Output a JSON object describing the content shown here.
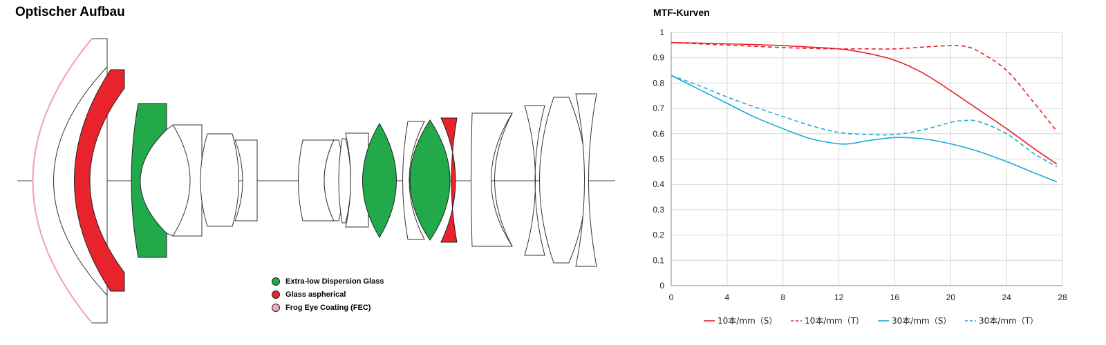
{
  "optics": {
    "title": "Optischer Aufbau",
    "legend": [
      {
        "label": "Extra-low Dispersion Glass",
        "color": "#22aa4a"
      },
      {
        "label": "Glass aspherical",
        "color": "#e8232b"
      },
      {
        "label": "Frog Eye Coating (FEC)",
        "color": "#f4a6b8"
      }
    ]
  },
  "chart_data": {
    "type": "line",
    "title": "MTF-Kurven",
    "xlabel": "",
    "ylabel": "",
    "xlim": [
      0,
      28
    ],
    "ylim": [
      0,
      1
    ],
    "xticks": [
      0,
      4,
      8,
      12,
      16,
      20,
      24,
      28
    ],
    "yticks": [
      0,
      0.1,
      0.2,
      0.3,
      0.4,
      0.5,
      0.6,
      0.7,
      0.8,
      0.9,
      1
    ],
    "ytick_labels": [
      "0",
      "0.1",
      "0.2",
      "0.3",
      "0.4",
      "0.5",
      "0.6",
      "0.7",
      "0.8",
      "0.9",
      "1"
    ],
    "grid": true,
    "legend_position": "bottom",
    "series": [
      {
        "name": "10本/mm（S）",
        "color": "#e8202a",
        "dash": false,
        "x": [
          0,
          2,
          4,
          6,
          8,
          10,
          12,
          14,
          16,
          18,
          20,
          22,
          24,
          26,
          27.6
        ],
        "y": [
          0.96,
          0.958,
          0.955,
          0.952,
          0.948,
          0.942,
          0.935,
          0.918,
          0.89,
          0.84,
          0.77,
          0.695,
          0.62,
          0.54,
          0.48
        ]
      },
      {
        "name": "10本/mm（T）",
        "color": "#e8202a",
        "dash": true,
        "x": [
          0,
          2,
          4,
          6,
          8,
          10,
          12,
          14,
          16,
          18,
          20,
          21,
          22,
          24,
          26,
          27.6
        ],
        "y": [
          0.96,
          0.955,
          0.95,
          0.945,
          0.94,
          0.937,
          0.935,
          0.935,
          0.935,
          0.942,
          0.948,
          0.945,
          0.925,
          0.85,
          0.72,
          0.61
        ]
      },
      {
        "name": "30本/mm（S）",
        "color": "#1aaadc",
        "dash": false,
        "x": [
          0,
          2,
          4,
          6,
          8,
          10,
          12,
          13,
          14,
          16,
          18,
          20,
          22,
          24,
          26,
          27.6
        ],
        "y": [
          0.83,
          0.775,
          0.72,
          0.665,
          0.62,
          0.58,
          0.56,
          0.562,
          0.572,
          0.585,
          0.58,
          0.56,
          0.53,
          0.49,
          0.445,
          0.41
        ]
      },
      {
        "name": "30本/mm（T）",
        "color": "#1aaadc",
        "dash": true,
        "x": [
          0,
          2,
          4,
          6,
          8,
          10,
          12,
          14,
          16,
          18,
          20,
          21,
          22,
          24,
          26,
          27.6
        ],
        "y": [
          0.83,
          0.79,
          0.745,
          0.705,
          0.668,
          0.632,
          0.605,
          0.597,
          0.597,
          0.615,
          0.645,
          0.652,
          0.648,
          0.6,
          0.52,
          0.47
        ]
      }
    ]
  }
}
